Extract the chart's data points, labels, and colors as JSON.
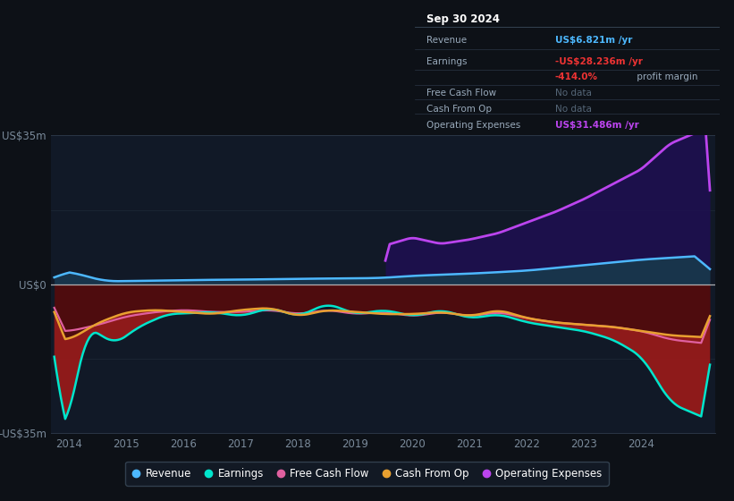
{
  "background_color": "#0d1117",
  "plot_bg_color": "#111927",
  "title": "Sep 30 2024",
  "ylim": [
    -35,
    35
  ],
  "xlim_start": 2013.7,
  "xlim_end": 2025.3,
  "yticks": [
    -35,
    0,
    35
  ],
  "ytick_labels": [
    "-US$35m",
    "US$0",
    "US$35m"
  ],
  "xticks": [
    2014,
    2015,
    2016,
    2017,
    2018,
    2019,
    2020,
    2021,
    2022,
    2023,
    2024
  ],
  "grid_color": "#2a3040",
  "zero_line_color": "#cccccc",
  "revenue_color": "#4db8ff",
  "earnings_color": "#00e5cc",
  "free_cash_flow_color": "#e060a0",
  "cash_from_op_color": "#e8a030",
  "op_expenses_color": "#bb44ee",
  "legend_bg": "#141c28",
  "legend_border": "#3a4a5a",
  "tick_color": "#7a8a9a",
  "tooltip_bg": "#080c12",
  "tooltip_border": "#3a4a5a",
  "tooltip_header_color": "#ffffff",
  "tooltip_label_color": "#99aabb",
  "tooltip_nodata_color": "#556677",
  "revenue_val_color": "#4db8ff",
  "earnings_val_color": "#ee3333",
  "margin_val_color": "#ee3333",
  "op_exp_val_color": "#bb44ee"
}
